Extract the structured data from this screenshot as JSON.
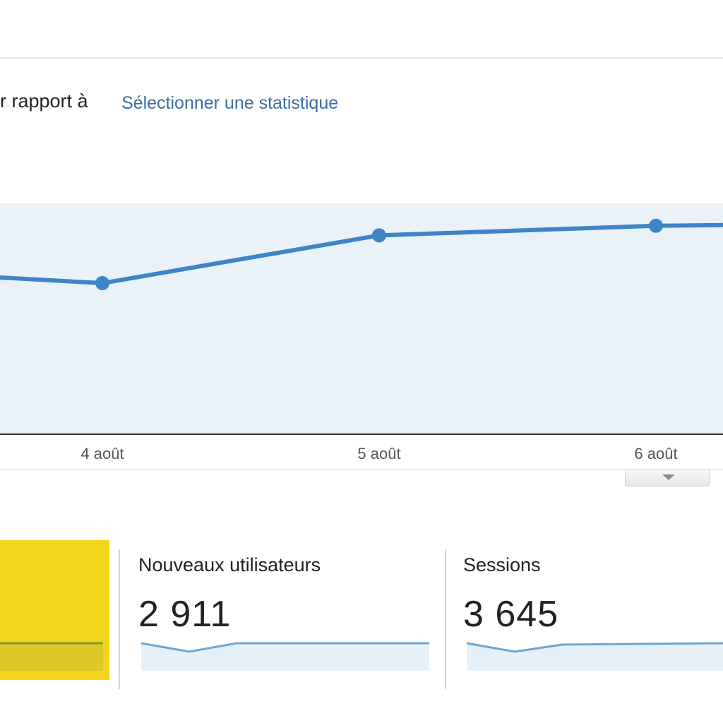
{
  "header": {
    "compare_label": "r rapport à",
    "select_metric_link": "Sélectionner une statistique"
  },
  "chart_data": {
    "type": "area",
    "x": [
      "4 août",
      "5 août",
      "6 août"
    ],
    "values": [
      2490,
      2740,
      2790
    ],
    "series": [
      {
        "values": [
          2490,
          2740,
          2790
        ]
      }
    ],
    "ylim": [
      1700,
      2900
    ],
    "grid": true,
    "colors": {
      "line": "#3d85c6",
      "fill": "#e9f1f9"
    }
  },
  "metrics": [
    {
      "title": "Nouveaux utilisateurs",
      "value": "2 911"
    },
    {
      "title": "Sessions",
      "value": "3 645"
    }
  ],
  "colors": {
    "accent": "#3d85c6",
    "link": "#3a6ea5",
    "highlight": "#f3d51c"
  },
  "icons": {
    "collapse": "chevron-down-icon"
  }
}
